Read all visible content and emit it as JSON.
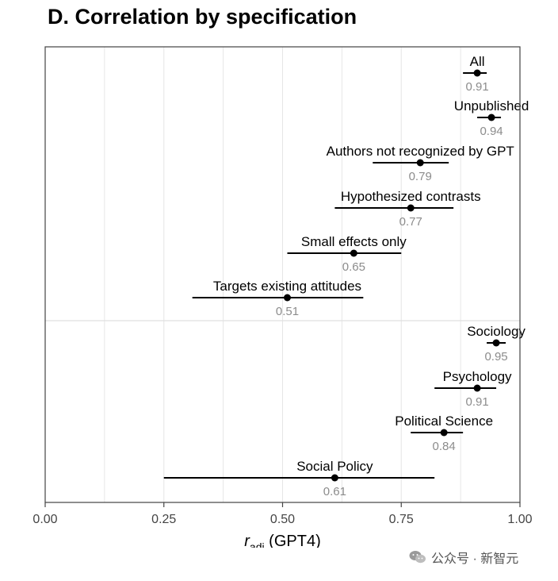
{
  "chart_data": {
    "type": "forest",
    "title": "D. Correlation by specification",
    "xlabel_main": "r",
    "xlabel_sub": "adj",
    "xlabel_suffix": " (GPT4)",
    "xlim": [
      0,
      1
    ],
    "xticks": [
      "0.00",
      "0.25",
      "0.50",
      "0.75",
      "1.00"
    ],
    "xtick_values": [
      0,
      0.25,
      0.5,
      0.75,
      1.0
    ],
    "grid": true,
    "groups": [
      [
        {
          "label": "All",
          "value": 0.91,
          "value_label": "0.91",
          "ci": [
            0.88,
            0.93
          ]
        },
        {
          "label": "Unpublished",
          "value": 0.94,
          "value_label": "0.94",
          "ci": [
            0.91,
            0.96
          ]
        },
        {
          "label": "Authors not recognized by GPT",
          "value": 0.79,
          "value_label": "0.79",
          "ci": [
            0.69,
            0.85
          ]
        },
        {
          "label": "Hypothesized contrasts",
          "value": 0.77,
          "value_label": "0.77",
          "ci": [
            0.61,
            0.86
          ]
        },
        {
          "label": "Small effects only",
          "value": 0.65,
          "value_label": "0.65",
          "ci": [
            0.51,
            0.75
          ]
        },
        {
          "label": "Targets existing attitudes",
          "value": 0.51,
          "value_label": "0.51",
          "ci": [
            0.31,
            0.67
          ]
        }
      ],
      [
        {
          "label": "Sociology",
          "value": 0.95,
          "value_label": "0.95",
          "ci": [
            0.93,
            0.97
          ]
        },
        {
          "label": "Psychology",
          "value": 0.91,
          "value_label": "0.91",
          "ci": [
            0.82,
            0.95
          ]
        },
        {
          "label": "Political Science",
          "value": 0.84,
          "value_label": "0.84",
          "ci": [
            0.77,
            0.88
          ]
        },
        {
          "label": "Social Policy",
          "value": 0.61,
          "value_label": "0.61",
          "ci": [
            0.25,
            0.82
          ]
        }
      ]
    ],
    "colors": {
      "point": "#000000",
      "value_text": "#8c8c8c",
      "grid": "#e6e6e6",
      "separator": "#e0e0e0",
      "frame": "#444444"
    }
  },
  "watermark": {
    "text": "公众号 · 新智元",
    "icon": "wechat-icon"
  }
}
